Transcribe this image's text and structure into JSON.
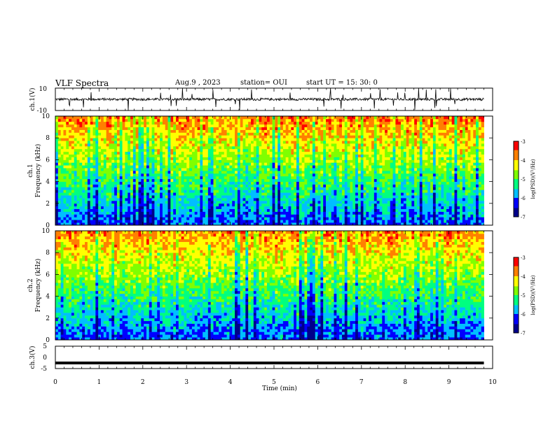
{
  "header": {
    "title": "VLF Spectra",
    "date": "Aug.9  , 2023",
    "station": "station= OUI",
    "start": "start  UT  =   15: 30: 0"
  },
  "colors": {
    "colormap": [
      "#00008b",
      "#0000ff",
      "#00bfff",
      "#00ff80",
      "#7fff00",
      "#ffff00",
      "#ff8000",
      "#ff0000",
      "#ffffff"
    ],
    "trace": "#000000"
  },
  "chart_data": [
    {
      "id": "ch1-waveform",
      "type": "line",
      "ylabel": "ch.1(V)",
      "ylim": [
        -10,
        10
      ],
      "yticks": [
        "10",
        "-10"
      ],
      "xlim": [
        0,
        10
      ],
      "description_values": {
        "baseline_v": 0,
        "spike_amplitude_v": 10
      }
    },
    {
      "id": "ch1-spectrogram",
      "type": "heatmap",
      "ylabel_line1": "ch.1",
      "ylabel_line2": "Frequency  (kHz)",
      "ylim": [
        0,
        10
      ],
      "yticks": [
        "0",
        "2",
        "4",
        "6",
        "8",
        "10"
      ],
      "xlim": [
        0,
        10
      ],
      "data_end_min": 9.8,
      "colorbar": {
        "label": "log(PSD)(V²/Hz)",
        "range": [
          -7,
          -3
        ],
        "ticks": [
          "-3",
          "-4",
          "-5",
          "-6",
          "-7"
        ]
      }
    },
    {
      "id": "ch2-spectrogram",
      "type": "heatmap",
      "ylabel_line1": "ch.2",
      "ylabel_line2": "Frequency  (kHz)",
      "ylim": [
        0,
        10
      ],
      "yticks": [
        "0",
        "2",
        "4",
        "6",
        "8",
        "10"
      ],
      "xlim": [
        0,
        10
      ],
      "data_end_min": 9.8,
      "colorbar": {
        "label": "log(PSD)(V²/Hz)",
        "range": [
          -7,
          -3
        ],
        "ticks": [
          "-3",
          "-4",
          "-5",
          "-6",
          "-7"
        ]
      }
    },
    {
      "id": "ch3-waveform",
      "type": "line",
      "ylabel": "ch.3(V)",
      "ylim": [
        -5,
        5
      ],
      "yticks": [
        "5",
        "0",
        "-5"
      ],
      "xlim": [
        0,
        10
      ],
      "x": [
        0,
        9.8
      ],
      "y": [
        -2.5,
        -2.5
      ],
      "xlabel": "Time  (min)",
      "xticks": [
        "0",
        "1",
        "2",
        "3",
        "4",
        "5",
        "6",
        "7",
        "8",
        "9",
        "10"
      ]
    }
  ]
}
